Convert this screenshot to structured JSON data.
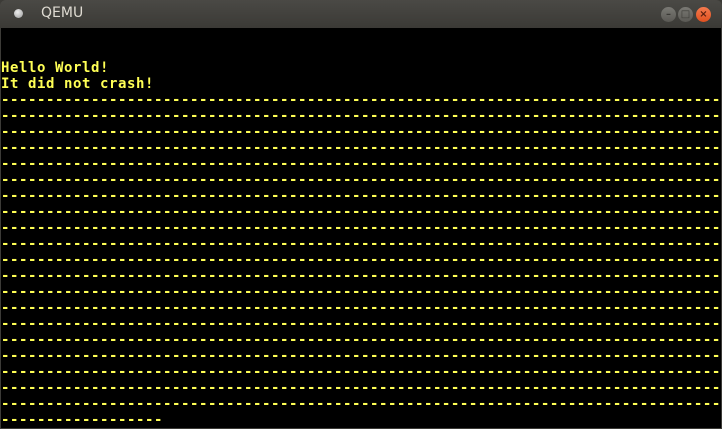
{
  "window": {
    "title": "QEMU",
    "buttons": {
      "minimize": "–",
      "maximize": "□",
      "close": "×"
    }
  },
  "screen": {
    "text_color": "#ffff55",
    "lines": [
      "Hello World!",
      "It did not crash!",
      "--------------------------------------------------------------------------------",
      "--------------------------------------------------------------------------------",
      "--------------------------------------------------------------------------------",
      "--------------------------------------------------------------------------------",
      "--------------------------------------------------------------------------------",
      "--------------------------------------------------------------------------------",
      "--------------------------------------------------------------------------------",
      "--------------------------------------------------------------------------------",
      "--------------------------------------------------------------------------------",
      "--------------------------------------------------------------------------------",
      "--------------------------------------------------------------------------------",
      "--------------------------------------------------------------------------------",
      "--------------------------------------------------------------------------------",
      "--------------------------------------------------------------------------------",
      "--------------------------------------------------------------------------------",
      "--------------------------------------------------------------------------------",
      "--------------------------------------------------------------------------------",
      "--------------------------------------------------------------------------------",
      "--------------------------------------------------------------------------------",
      "--------------------------------------------------------------------------------",
      "------------------"
    ]
  }
}
